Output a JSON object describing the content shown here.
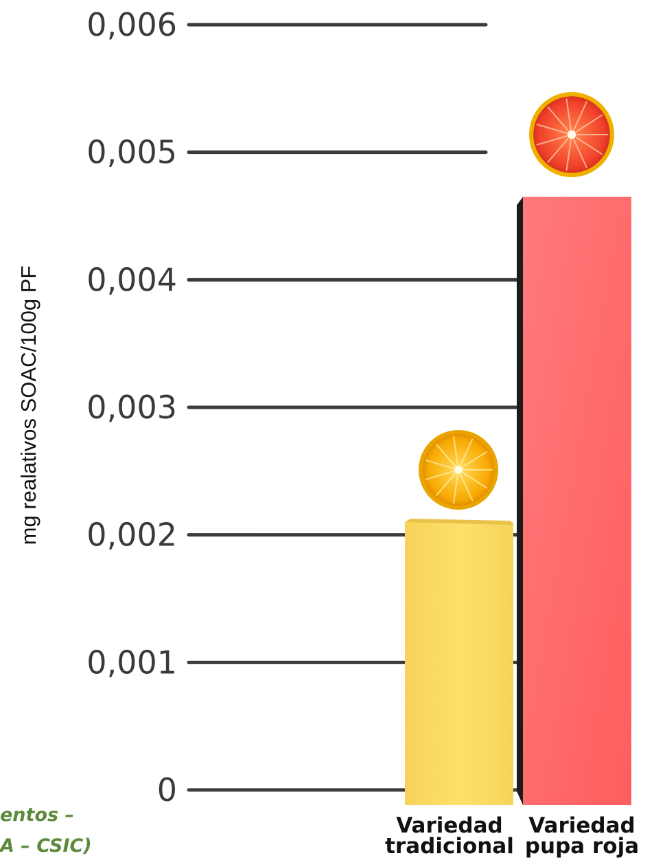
{
  "chart_data": {
    "type": "bar",
    "title": "",
    "xlabel": "",
    "ylabel": "mg realativos SOAC/100g PF",
    "ylim": [
      0,
      0.006
    ],
    "y_ticks": [
      "0",
      "0,001",
      "0,002",
      "0,003",
      "0,004",
      "0,005",
      "0,006"
    ],
    "y_tick_values": [
      0,
      0.001,
      0.002,
      0.003,
      0.004,
      0.005,
      0.006
    ],
    "categories": [
      {
        "line1": "Variedad",
        "line2": "tradicional"
      },
      {
        "line1": "Variedad",
        "line2": "pupa roja"
      }
    ],
    "values": [
      0.0021,
      0.00465
    ],
    "grid": true,
    "legend": "none"
  },
  "colors": {
    "bar_1": "#fbdc62",
    "bar_2": "#ff6e6e",
    "grid_line": "#3b3b3b",
    "source_text": "#5d8a3a"
  },
  "icons": [
    "orange-slice-icon",
    "grapefruit-slice-icon"
  ],
  "source_note": {
    "line1": "entos –",
    "line2": "A – CSIC)"
  }
}
